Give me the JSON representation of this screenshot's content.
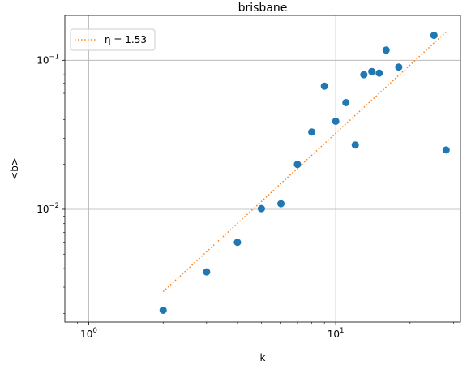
{
  "chart_data": {
    "type": "scatter",
    "title": "brisbane",
    "xlabel": "k",
    "ylabel": "<b>",
    "xscale": "log",
    "yscale": "log",
    "xlim": [
      0.8,
      32
    ],
    "ylim": [
      0.00175,
      0.2
    ],
    "grid": true,
    "legend_placement": "top-left",
    "x_ticks": [
      {
        "value": 1,
        "base": "10",
        "exp": "0"
      },
      {
        "value": 10,
        "base": "10",
        "exp": "1"
      }
    ],
    "y_ticks": [
      {
        "value": 0.01,
        "base": "10",
        "exp": "−2"
      },
      {
        "value": 0.1,
        "base": "10",
        "exp": "−1"
      }
    ],
    "series": [
      {
        "kind": "points",
        "color": "#1f77b4",
        "x": [
          2,
          3,
          4,
          5,
          6,
          7,
          8,
          9,
          10,
          11,
          12,
          13,
          14,
          15,
          16,
          18,
          25,
          28
        ],
        "y": [
          0.0021,
          0.0038,
          0.006,
          0.0101,
          0.0109,
          0.02,
          0.033,
          0.067,
          0.039,
          0.052,
          0.027,
          0.08,
          0.084,
          0.082,
          0.117,
          0.09,
          0.147,
          0.025
        ]
      },
      {
        "kind": "fit-line",
        "name": "η = 1.53",
        "color": "#ff7f0e",
        "style": "dotted",
        "x": [
          2,
          28
        ],
        "y": [
          0.0028,
          0.155
        ]
      }
    ]
  }
}
